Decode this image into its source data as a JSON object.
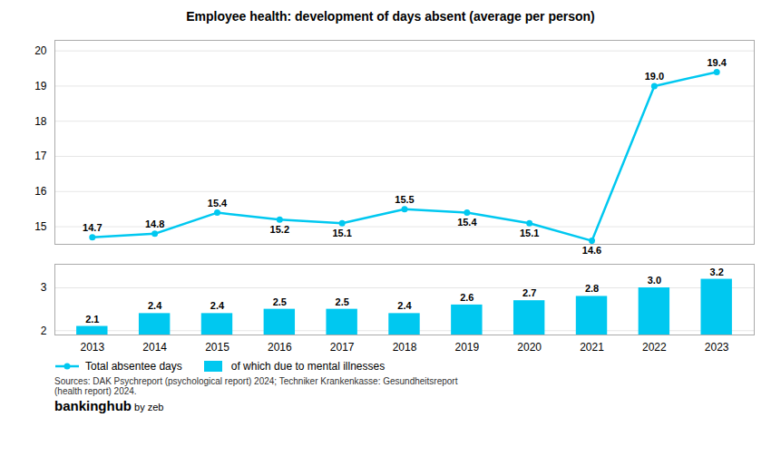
{
  "chart_data": {
    "type": "line",
    "title": "Employee health: development of days absent (average per person)",
    "categories": [
      "2013",
      "2014",
      "2015",
      "2016",
      "2017",
      "2018",
      "2019",
      "2020",
      "2021",
      "2022",
      "2023"
    ],
    "series": [
      {
        "name": "Total absentee days",
        "type": "line",
        "color": "#00C8F0",
        "marker": "circle",
        "values": [
          14.7,
          14.8,
          15.4,
          15.2,
          15.1,
          15.5,
          15.4,
          15.1,
          14.6,
          19.0,
          19.4
        ],
        "value_labels": [
          "14.7",
          "14.8",
          "15.4",
          "15.2",
          "15.1",
          "15.5",
          "15.4",
          "15.1",
          "14.6",
          "19.0",
          "19.4"
        ]
      },
      {
        "name": "of which due to mental illnesses",
        "type": "bar",
        "color": "#00C8F0",
        "axis": "y2",
        "values": [
          2.1,
          2.4,
          2.4,
          2.5,
          2.5,
          2.4,
          2.6,
          2.7,
          2.8,
          3.0,
          3.2
        ],
        "value_labels": [
          "2.1",
          "2.4",
          "2.4",
          "2.5",
          "2.5",
          "2.4",
          "2.6",
          "2.7",
          "2.8",
          "3.0",
          "3.2"
        ]
      }
    ],
    "ylim": [
      14.5,
      20.3
    ],
    "yticks": [
      15,
      16,
      17,
      18,
      19,
      20
    ],
    "y2lim": [
      1.9,
      3.55
    ],
    "y2ticks": [
      2,
      3
    ],
    "grid": true,
    "data_labels": true,
    "legend": "lower left",
    "annotations": [
      "Sources: DAK Psychreport (psychological report) 2024; Techniker Krankenkasse: Gesundheitsreport\n(health report) 2024.",
      "bankinghub",
      " by zeb"
    ]
  }
}
